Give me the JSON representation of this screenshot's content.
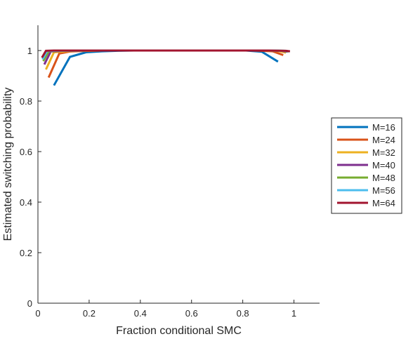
{
  "chart_data": {
    "type": "line",
    "title": "",
    "xlabel": "Fraction conditional SMC",
    "ylabel": "Estimated switching probability",
    "xlim": [
      0,
      1.1
    ],
    "ylim": [
      0,
      1.1
    ],
    "xticks": [
      0,
      0.2,
      0.4,
      0.6,
      0.8,
      1
    ],
    "xtick_labels": [
      "0",
      "0.2",
      "0.4",
      "0.6",
      "0.8",
      "1"
    ],
    "yticks": [
      0,
      0.2,
      0.4,
      0.6,
      0.8,
      1
    ],
    "ytick_labels": [
      "0",
      "0.2",
      "0.4",
      "0.6",
      "0.8",
      "1"
    ],
    "grid": false,
    "legend_position": "right",
    "series": [
      {
        "name": "M=16",
        "color": "#0072BD",
        "x": [
          0.0625,
          0.125,
          0.1875,
          0.25,
          0.3125,
          0.375,
          0.4375,
          0.5,
          0.5625,
          0.625,
          0.6875,
          0.75,
          0.8125,
          0.875,
          0.9375
        ],
        "y": [
          0.862,
          0.975,
          0.993,
          0.997,
          0.999,
          1.0,
          1.0,
          1.0,
          1.0,
          1.0,
          1.0,
          1.0,
          1.0,
          0.995,
          0.956
        ]
      },
      {
        "name": "M=24",
        "color": "#D95319",
        "x": [
          0.0417,
          0.0833,
          0.125,
          0.1667,
          0.2083,
          0.25,
          0.2917,
          0.3333,
          0.375,
          0.4167,
          0.4583,
          0.5,
          0.5417,
          0.5833,
          0.625,
          0.6667,
          0.7083,
          0.75,
          0.7917,
          0.8333,
          0.875,
          0.9167,
          0.9583
        ],
        "y": [
          0.893,
          0.988,
          0.996,
          0.998,
          0.999,
          1.0,
          1.0,
          1.0,
          1.0,
          1.0,
          1.0,
          1.0,
          1.0,
          1.0,
          1.0,
          1.0,
          1.0,
          1.0,
          1.0,
          1.0,
          0.999,
          0.997,
          0.982
        ]
      },
      {
        "name": "M=32",
        "color": "#EDB120",
        "x": [
          0.03125,
          0.0625,
          0.125,
          0.25,
          0.375,
          0.5,
          0.625,
          0.75,
          0.875,
          0.9375,
          0.96875
        ],
        "y": [
          0.925,
          0.993,
          0.998,
          1.0,
          1.0,
          1.0,
          1.0,
          1.0,
          1.0,
          0.998,
          0.992
        ]
      },
      {
        "name": "M=40",
        "color": "#7E2F8E",
        "x": [
          0.025,
          0.05,
          0.1,
          0.2,
          0.4,
          0.6,
          0.8,
          0.9,
          0.95,
          0.975
        ],
        "y": [
          0.945,
          0.996,
          0.999,
          1.0,
          1.0,
          1.0,
          1.0,
          1.0,
          0.999,
          0.995
        ]
      },
      {
        "name": "M=48",
        "color": "#77AC30",
        "x": [
          0.0208,
          0.0417,
          0.0833,
          0.2,
          0.4,
          0.6,
          0.8,
          0.9,
          0.9583,
          0.9792
        ],
        "y": [
          0.958,
          0.997,
          0.999,
          1.0,
          1.0,
          1.0,
          1.0,
          1.0,
          0.999,
          0.996
        ]
      },
      {
        "name": "M=56",
        "color": "#4DBEEE",
        "x": [
          0.0179,
          0.0357,
          0.0714,
          0.2,
          0.4,
          0.6,
          0.8,
          0.9,
          0.9643,
          0.9821
        ],
        "y": [
          0.965,
          0.998,
          0.999,
          1.0,
          1.0,
          1.0,
          1.0,
          1.0,
          0.999,
          0.997
        ]
      },
      {
        "name": "M=64",
        "color": "#A2142F",
        "x": [
          0.0156,
          0.03125,
          0.0625,
          0.2,
          0.4,
          0.6,
          0.8,
          0.9,
          0.96875,
          0.9844
        ],
        "y": [
          0.972,
          0.999,
          1.0,
          1.0,
          1.0,
          1.0,
          1.0,
          1.0,
          0.999,
          0.997
        ]
      }
    ]
  }
}
